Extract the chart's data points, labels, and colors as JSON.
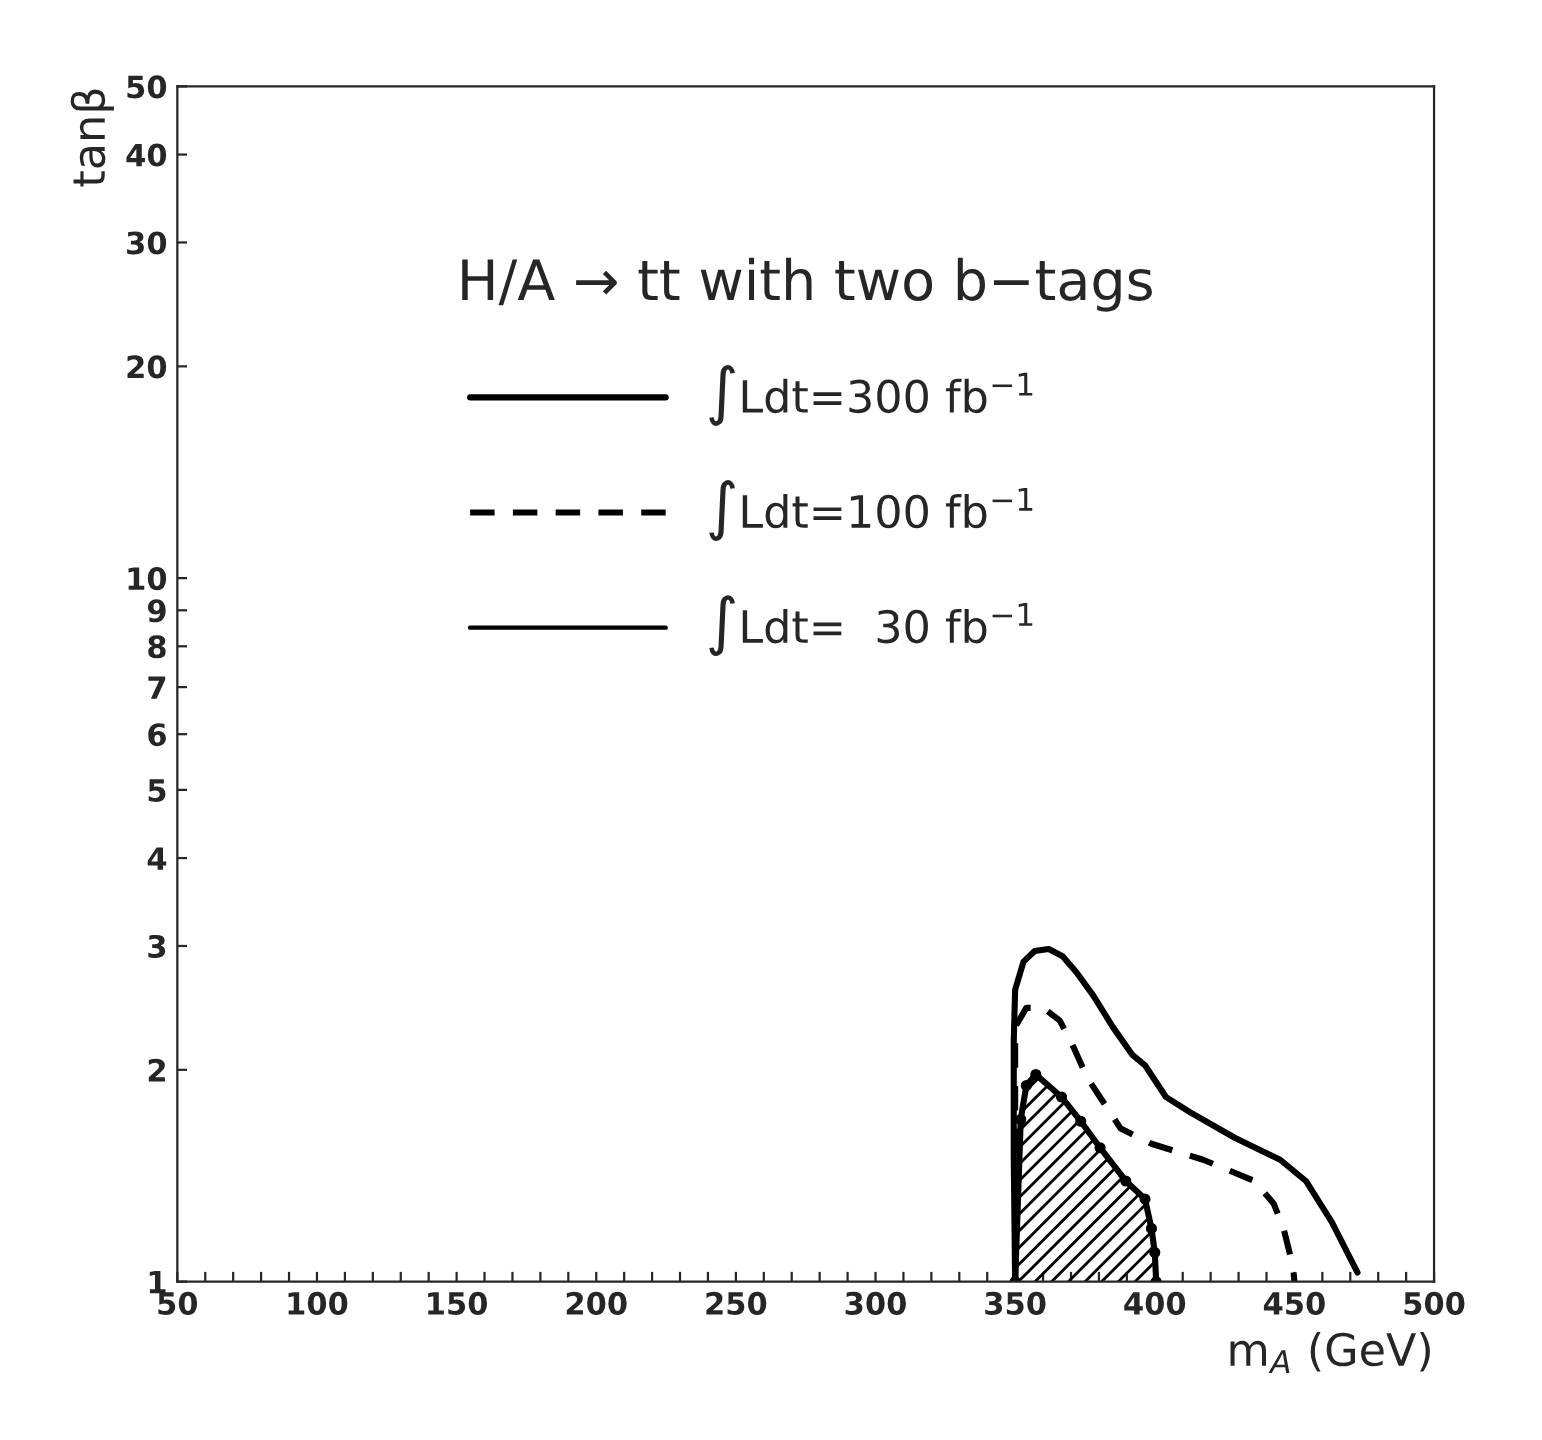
{
  "chart_data": {
    "type": "line",
    "xlabel": "m$_{A}$ (GeV)",
    "ylabel": "tanβ",
    "legend_title": "H/A → tt with two b−tags",
    "legend": "top",
    "log": "y",
    "grid": false,
    "xlim": [
      50,
      500
    ],
    "ylim": [
      1,
      50
    ],
    "xticks": [
      50,
      {
        "value": 60,
        "label": null
      },
      {
        "value": 70,
        "label": null
      },
      {
        "value": 80,
        "label": null
      },
      {
        "value": 90,
        "label": null
      },
      100,
      {
        "value": 110,
        "label": null
      },
      {
        "value": 120,
        "label": null
      },
      {
        "value": 130,
        "label": null
      },
      {
        "value": 140,
        "label": null
      },
      150,
      {
        "value": 160,
        "label": null
      },
      {
        "value": 170,
        "label": null
      },
      {
        "value": 180,
        "label": null
      },
      {
        "value": 190,
        "label": null
      },
      200,
      {
        "value": 210,
        "label": null
      },
      {
        "value": 220,
        "label": null
      },
      {
        "value": 230,
        "label": null
      },
      {
        "value": 240,
        "label": null
      },
      250,
      {
        "value": 260,
        "label": null
      },
      {
        "value": 270,
        "label": null
      },
      {
        "value": 280,
        "label": null
      },
      {
        "value": 290,
        "label": null
      },
      300,
      {
        "value": 310,
        "label": null
      },
      {
        "value": 320,
        "label": null
      },
      {
        "value": 330,
        "label": null
      },
      {
        "value": 340,
        "label": null
      },
      350,
      {
        "value": 360,
        "label": null
      },
      {
        "value": 370,
        "label": null
      },
      {
        "value": 380,
        "label": null
      },
      {
        "value": 390,
        "label": null
      },
      400,
      {
        "value": 410,
        "label": null
      },
      {
        "value": 420,
        "label": null
      },
      {
        "value": 430,
        "label": null
      },
      {
        "value": 440,
        "label": null
      },
      450,
      {
        "value": 460,
        "label": null
      },
      {
        "value": 470,
        "label": null
      },
      {
        "value": 480,
        "label": null
      },
      {
        "value": 490,
        "label": null
      },
      500
    ],
    "yticks": [
      1,
      2,
      3,
      4,
      5,
      6,
      7,
      8,
      9,
      10,
      20,
      30,
      40,
      50
    ],
    "series": [
      {
        "name": "∫Ldt=300 fb$^{−1}$",
        "color": "#000000",
        "line_style": "solid",
        "x": [
          350,
          349.5,
          349.5,
          350,
          353,
          357,
          362,
          367,
          372,
          378,
          385,
          392,
          396.5,
          404,
          412.7,
          428.8,
          444.9,
          454.1,
          463.4,
          472.6
        ],
        "values": [
          1,
          1.5,
          2.2,
          2.6,
          2.85,
          2.95,
          2.97,
          2.9,
          2.75,
          2.55,
          2.3,
          2.1,
          2.03,
          1.83,
          1.74,
          1.6,
          1.49,
          1.39,
          1.215,
          1.03
        ]
      },
      {
        "name": "∫Ldt=100 fb$^{−1}$",
        "color": "#000000",
        "line_style": "dashed",
        "x": [
          350,
          350,
          354,
          360,
          366,
          371,
          375.8,
          387.8,
          398.8,
          417.3,
          435.7,
          442.6,
          446.1,
          449.5,
          450
        ],
        "values": [
          1,
          2.3,
          2.45,
          2.45,
          2.35,
          2.15,
          1.95,
          1.65,
          1.57,
          1.49,
          1.39,
          1.29,
          1.19,
          1.05,
          1
        ]
      },
      {
        "name": "∫Ldt=  30 fb$^{−1}$",
        "color": "#000000",
        "type": "area",
        "line_style": "solid",
        "marker": "circle",
        "x": [
          350,
          352,
          354,
          357.4,
          366.6,
          373.5,
          380.4,
          389.6,
          396.5,
          398.8,
          400,
          400.5
        ],
        "values": [
          1,
          1.7,
          1.9,
          1.97,
          1.83,
          1.69,
          1.55,
          1.39,
          1.31,
          1.19,
          1.1,
          1
        ]
      }
    ]
  }
}
